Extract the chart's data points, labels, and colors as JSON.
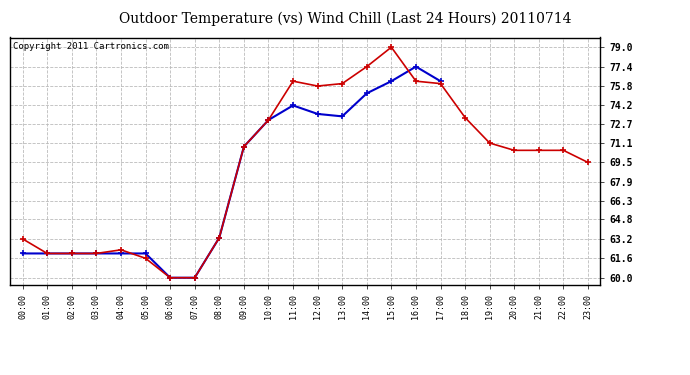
{
  "title": "Outdoor Temperature (vs) Wind Chill (Last 24 Hours) 20110714",
  "copyright": "Copyright 2011 Cartronics.com",
  "x_labels": [
    "00:00",
    "01:00",
    "02:00",
    "03:00",
    "04:00",
    "05:00",
    "06:00",
    "07:00",
    "08:00",
    "09:00",
    "10:00",
    "11:00",
    "12:00",
    "13:00",
    "14:00",
    "15:00",
    "16:00",
    "17:00",
    "18:00",
    "19:00",
    "20:00",
    "21:00",
    "22:00",
    "23:00"
  ],
  "temp_red": [
    63.2,
    62.0,
    62.0,
    62.0,
    62.3,
    61.6,
    60.0,
    60.0,
    63.3,
    70.8,
    73.0,
    76.2,
    75.8,
    76.0,
    77.4,
    79.0,
    76.2,
    76.0,
    73.2,
    71.1,
    70.5,
    70.5,
    70.5,
    69.5
  ],
  "wind_chill_blue": [
    62.0,
    62.0,
    62.0,
    62.0,
    62.0,
    62.0,
    60.0,
    60.0,
    63.3,
    70.8,
    73.0,
    74.2,
    73.5,
    73.3,
    75.2,
    76.2,
    77.4,
    76.2,
    null,
    null,
    null,
    null,
    null,
    null
  ],
  "y_ticks": [
    60.0,
    61.6,
    63.2,
    64.8,
    66.3,
    67.9,
    69.5,
    71.1,
    72.7,
    74.2,
    75.8,
    77.4,
    79.0
  ],
  "ylim": [
    59.4,
    79.8
  ],
  "red_color": "#cc0000",
  "blue_color": "#0000cc",
  "bg_color": "#ffffff",
  "grid_color": "#bbbbbb",
  "title_fontsize": 10,
  "copyright_fontsize": 6.5
}
